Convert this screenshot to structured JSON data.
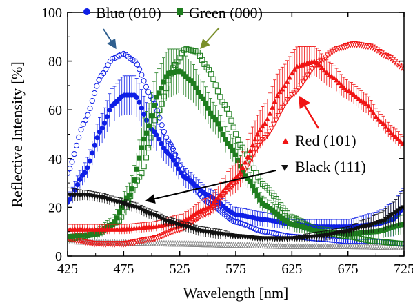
{
  "chart_data": {
    "type": "scatter",
    "title": "",
    "xlabel": "Wavelength [nm]",
    "ylabel": "Reflective Intensity [%]",
    "xlim": [
      425,
      725
    ],
    "ylim": [
      0,
      100
    ],
    "xticks": [
      425,
      475,
      525,
      575,
      625,
      675,
      725
    ],
    "yticks": [
      0,
      20,
      40,
      60,
      80,
      100
    ],
    "grid": false,
    "colors": {
      "blue": "#0f1fe6",
      "green": "#1e7d1e",
      "red": "#f01414",
      "black": "#111111",
      "gray": "#8a8a8a"
    },
    "legend": [
      {
        "label": "Blue (010)",
        "marker": "circle",
        "color": "#0f1fe6"
      },
      {
        "label": "Green (000)",
        "marker": "square",
        "color": "#1e7d1e"
      },
      {
        "label": "Red (101)",
        "marker": "triangle-up",
        "color": "#f01414"
      },
      {
        "label": "Black (111)",
        "marker": "triangle-down",
        "color": "#111111"
      }
    ],
    "series": [
      {
        "name": "Blue (010)",
        "style": "measured",
        "marker": "circle",
        "color": "#0f1fe6",
        "x": [
          425,
          440,
          455,
          465,
          475,
          485,
          500,
          515,
          530,
          550,
          575,
          600,
          625,
          650,
          675,
          700,
          715,
          725
        ],
        "y": [
          22,
          34,
          52,
          62,
          66,
          66,
          52,
          42,
          32,
          25,
          17,
          15,
          13,
          12,
          12,
          13,
          15,
          20
        ],
        "err": [
          3,
          4,
          6,
          7,
          8,
          8,
          7,
          5,
          4,
          3,
          3,
          3,
          2,
          3,
          3,
          5,
          7,
          8
        ]
      },
      {
        "style": "simulated",
        "marker": "open-circle",
        "color": "#0f1fe6",
        "x": [
          425,
          440,
          455,
          465,
          475,
          485,
          500,
          515,
          530,
          550,
          575,
          600,
          625,
          650,
          675,
          700,
          725
        ],
        "y": [
          34,
          55,
          74,
          81,
          83,
          80,
          65,
          47,
          33,
          22,
          14,
          10,
          8,
          7,
          6,
          6,
          5
        ]
      },
      {
        "name": "Green (000)",
        "style": "measured",
        "marker": "square",
        "color": "#1e7d1e",
        "x": [
          425,
          450,
          465,
          480,
          495,
          505,
          515,
          525,
          535,
          545,
          555,
          570,
          585,
          600,
          625,
          650,
          675,
          700,
          725
        ],
        "y": [
          8,
          9,
          13,
          25,
          50,
          66,
          75,
          76,
          72,
          65,
          57,
          45,
          32,
          21,
          13,
          10,
          9,
          10,
          13
        ],
        "err": [
          2,
          2,
          3,
          5,
          9,
          10,
          10,
          9,
          8,
          7,
          6,
          5,
          4,
          3,
          3,
          2,
          2,
          3,
          4
        ]
      },
      {
        "style": "simulated",
        "marker": "open-square",
        "color": "#1e7d1e",
        "x": [
          425,
          450,
          470,
          490,
          505,
          520,
          530,
          540,
          550,
          565,
          580,
          600,
          625,
          650,
          675,
          700,
          725
        ],
        "y": [
          7,
          9,
          14,
          33,
          58,
          78,
          85,
          84,
          77,
          62,
          45,
          29,
          16,
          10,
          8,
          6,
          5
        ]
      },
      {
        "name": "Red (101)",
        "style": "measured",
        "marker": "triangle-up",
        "color": "#f01414",
        "x": [
          425,
          450,
          475,
          500,
          525,
          550,
          575,
          600,
          615,
          630,
          645,
          660,
          675,
          690,
          705,
          715,
          725
        ],
        "y": [
          11,
          11,
          11,
          12,
          14,
          20,
          32,
          54,
          68,
          78,
          80,
          74,
          68,
          63,
          55,
          50,
          46
        ],
        "err": [
          2,
          2,
          2,
          2,
          3,
          4,
          6,
          8,
          9,
          8,
          6,
          5,
          4,
          4,
          3,
          3,
          3
        ]
      },
      {
        "style": "simulated",
        "marker": "open-triangle-down",
        "color": "#f01414",
        "x": [
          425,
          450,
          475,
          500,
          525,
          550,
          575,
          600,
          625,
          650,
          665,
          680,
          695,
          710,
          725
        ],
        "y": [
          7,
          5,
          5,
          7,
          11,
          18,
          30,
          48,
          66,
          80,
          85,
          87,
          86,
          82,
          77
        ]
      },
      {
        "name": "Black (111)",
        "style": "measured",
        "marker": "triangle-down",
        "color": "#111111",
        "x": [
          425,
          440,
          455,
          470,
          485,
          500,
          515,
          530,
          545,
          560,
          575,
          600,
          625,
          650,
          675,
          690,
          705,
          715,
          725
        ],
        "y": [
          25,
          25,
          24,
          22,
          20,
          17,
          14,
          12,
          10,
          9,
          8,
          7,
          7,
          8,
          10,
          12,
          14,
          17,
          20
        ],
        "err": [
          3,
          2,
          2,
          2,
          2,
          2,
          2,
          2,
          2,
          2,
          1,
          1,
          1,
          2,
          2,
          3,
          4,
          5,
          7
        ]
      },
      {
        "style": "simulated",
        "marker": "open-triangle-up",
        "color": "#8a8a8a",
        "x": [
          425,
          475,
          525,
          575,
          625,
          675,
          725
        ],
        "y": [
          6,
          5.5,
          5,
          4.5,
          4,
          4,
          3.5
        ]
      }
    ]
  }
}
